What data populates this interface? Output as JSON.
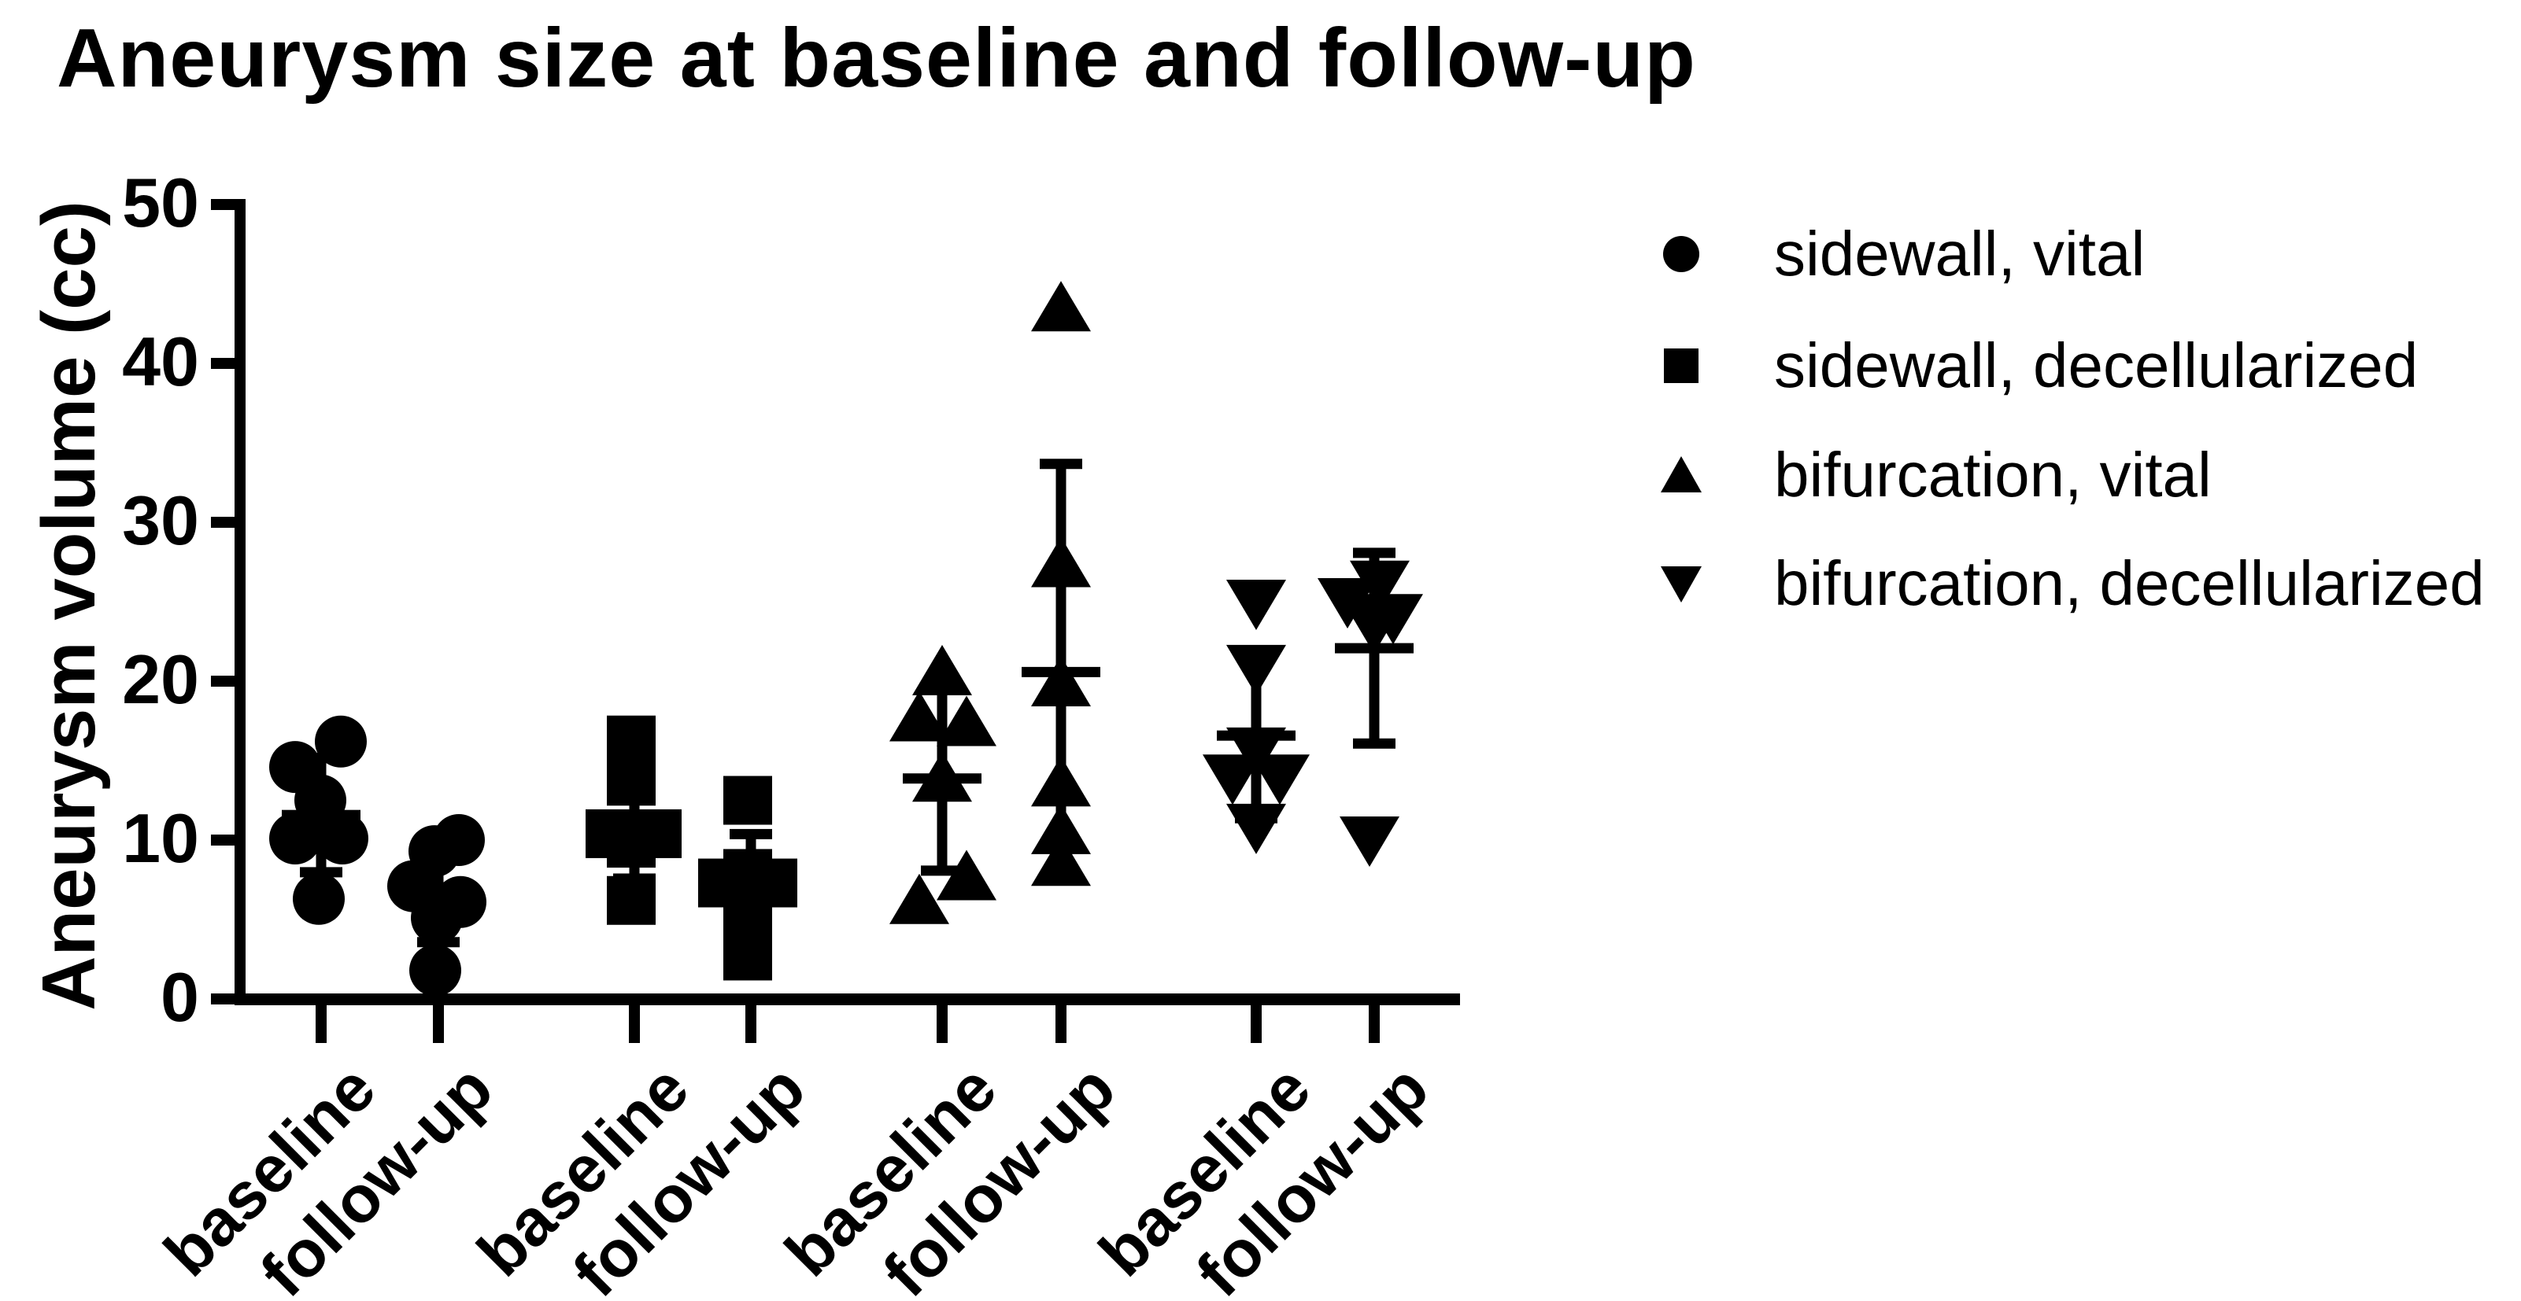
{
  "title": "Aneurysm size at baseline and follow-up",
  "y_axis": {
    "label": "Aneurysm volume (cc)",
    "ticks": [
      "0",
      "10",
      "20",
      "30",
      "40",
      "50"
    ],
    "min": 0,
    "max": 50
  },
  "x_axis": {
    "tick_labels": [
      "baseline",
      "follow-up",
      "baseline",
      "follow-up",
      "baseline",
      "follow-up",
      "baseline",
      "follow-up"
    ]
  },
  "legend": [
    {
      "marker": "circle",
      "label": "sidewall, vital"
    },
    {
      "marker": "square",
      "label": "sidewall, decellularized"
    },
    {
      "marker": "triangle-up",
      "label": "bifurcation, vital"
    },
    {
      "marker": "triangle-down",
      "label": "bifurcation, decellularized"
    }
  ],
  "colors": {
    "foreground": "#000000",
    "background": "#ffffff"
  },
  "chart_data": {
    "type": "scatter",
    "title": "Aneurysm size at baseline and follow-up",
    "xlabel": "",
    "ylabel": "Aneurysm volume (cc)",
    "ylim": [
      0,
      50
    ],
    "grid": false,
    "legend_position": "right",
    "error_bar_type": "mean ± SD",
    "groups": [
      {
        "series": "sidewall, vital",
        "timepoint": "baseline",
        "marker": "circle",
        "values": [
          16.2,
          14.6,
          12.5,
          10.1,
          10.1,
          6.3
        ],
        "mean": 11.6,
        "sd": 3.6,
        "dx": [
          25,
          -33,
          -1,
          -33,
          27,
          -3
        ]
      },
      {
        "series": "sidewall, vital",
        "timepoint": "follow-up",
        "marker": "circle",
        "values": [
          10.0,
          9.3,
          7.1,
          6.1,
          5.1,
          1.8
        ],
        "mean": 6.6,
        "sd": 3.0,
        "dx": [
          26,
          -5,
          -32,
          28,
          -2,
          -4
        ]
      },
      {
        "series": "sidewall, decellularized",
        "timepoint": "baseline",
        "marker": "square",
        "values": [
          16.3,
          13.7,
          10.4,
          10.4,
          9.8,
          6.2
        ],
        "mean": 11.1,
        "sd": 3.5,
        "dx": [
          -4,
          -4,
          -31,
          29,
          -4,
          -4
        ]
      },
      {
        "series": "sidewall, decellularized",
        "timepoint": "follow-up",
        "marker": "square",
        "values": [
          12.5,
          7.9,
          7.3,
          7.3,
          5.3,
          2.7
        ],
        "mean": 7.2,
        "sd": 3.2,
        "dx": [
          -4,
          -4,
          -36,
          28,
          -4,
          -4
        ]
      },
      {
        "series": "bifurcation, vital",
        "timepoint": "baseline",
        "marker": "triangle-up",
        "values": [
          20.6,
          17.7,
          17.4,
          13.9,
          7.7,
          6.2
        ],
        "mean": 13.9,
        "sd": 5.8,
        "dx": [
          0,
          -29,
          31,
          0,
          31,
          -29
        ]
      },
      {
        "series": "bifurcation, vital",
        "timepoint": "follow-up",
        "marker": "triangle-up",
        "values": [
          43.5,
          27.4,
          19.9,
          13.6,
          10.6,
          8.6
        ],
        "mean": 20.6,
        "sd": 13.1,
        "dx": [
          0,
          0,
          0,
          0,
          0,
          0
        ]
      },
      {
        "series": "bifurcation, decellularized",
        "timepoint": "baseline",
        "marker": "triangle-down",
        "values": [
          24.9,
          20.8,
          15.6,
          13.9,
          13.9,
          10.8
        ],
        "mean": 16.6,
        "sd": 5.2,
        "dx": [
          0,
          0,
          0,
          -30,
          30,
          0
        ]
      },
      {
        "series": "bifurcation, decellularized",
        "timepoint": "follow-up",
        "marker": "triangle-down",
        "values": [
          26.1,
          25.0,
          24.0,
          23.9,
          23.6,
          10.0
        ],
        "mean": 22.1,
        "sd": 6.0,
        "dx": [
          7,
          -34,
          24,
          -6,
          2,
          -6
        ]
      }
    ]
  }
}
